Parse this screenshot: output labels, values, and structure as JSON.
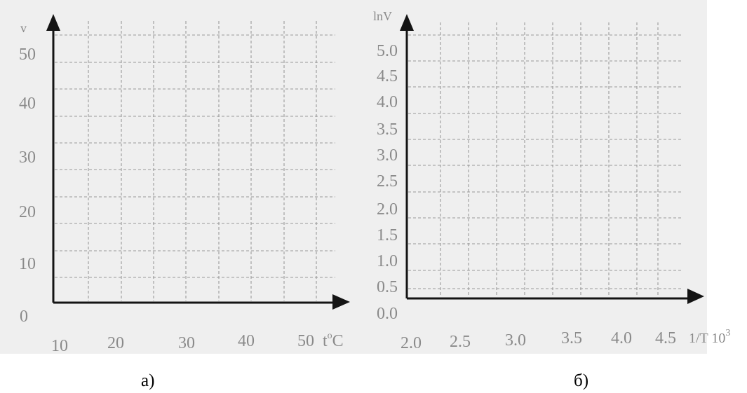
{
  "chart_data": [
    {
      "type": "line",
      "ylabel": "v",
      "xlabel_main": "t",
      "xlabel_sup": "o",
      "xlabel_tail": "C",
      "x_ticks": [
        "10",
        "20",
        "30",
        "40",
        "50"
      ],
      "y_ticks": [
        "0",
        "10",
        "20",
        "30",
        "40",
        "50"
      ],
      "xlim": [
        10,
        50
      ],
      "ylim": [
        0,
        50
      ],
      "grid": true,
      "series": []
    },
    {
      "type": "line",
      "ylabel": "lnV",
      "xlabel_main": "1/T 10",
      "xlabel_sup": "3",
      "x_ticks": [
        "2.0",
        "2.5",
        "3.0",
        "3.5",
        "4.0",
        "4.5"
      ],
      "y_ticks": [
        "0.0",
        "0.5",
        "1.0",
        "1.5",
        "2.0",
        "2.5",
        "3.0",
        "3.5",
        "4.0",
        "4.5",
        "5.0"
      ],
      "xlim": [
        2.0,
        4.5
      ],
      "ylim": [
        0.0,
        5.0
      ],
      "grid": true,
      "series": []
    }
  ],
  "captions": {
    "left": "а)",
    "right": "б)"
  }
}
